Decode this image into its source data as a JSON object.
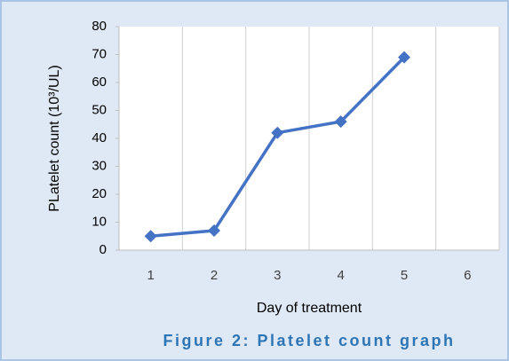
{
  "chart_data": {
    "type": "line",
    "caption": "Figure 2: Platelet count graph",
    "xlabel": "Day of treatment",
    "ylabel": "PLatelet count (10³/UL)",
    "categories": [
      "1",
      "2",
      "3",
      "4",
      "5",
      "6"
    ],
    "series": [
      {
        "name": "Platelet count",
        "color": "#4472c4",
        "values": [
          5,
          7,
          42,
          46,
          69,
          null
        ]
      }
    ],
    "ylim": [
      0,
      80
    ],
    "yticks": [
      0,
      10,
      20,
      30,
      40,
      50,
      60,
      70,
      80
    ],
    "vertical_grid": true,
    "legend": false
  }
}
